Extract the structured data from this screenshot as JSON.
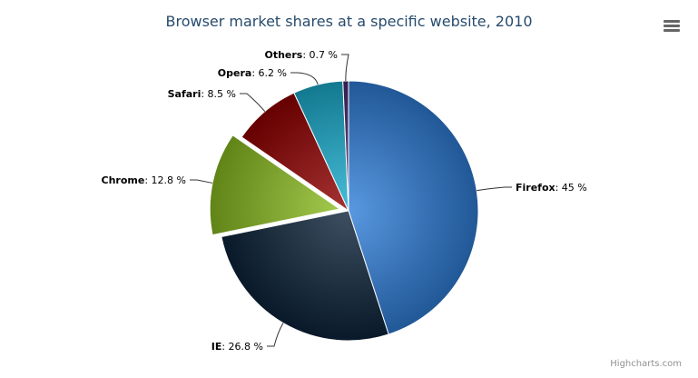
{
  "chart_data": {
    "type": "pie",
    "title": "Browser market shares at a specific website, 2010",
    "unit": "%",
    "slices": [
      {
        "name": "Firefox",
        "value": 45.0,
        "color": "#2f7ed8",
        "sliced": false
      },
      {
        "name": "IE",
        "value": 26.8,
        "color": "#0d233a",
        "sliced": false
      },
      {
        "name": "Chrome",
        "value": 12.8,
        "color": "#8bbc21",
        "sliced": true
      },
      {
        "name": "Safari",
        "value": 8.5,
        "color": "#910000",
        "sliced": false
      },
      {
        "name": "Opera",
        "value": 6.2,
        "color": "#1aadce",
        "sliced": false
      },
      {
        "name": "Others",
        "value": 0.7,
        "color": "#492970",
        "sliced": false
      }
    ]
  },
  "credits": "Highcharts.com",
  "menu_icon": "hamburger-menu-icon"
}
